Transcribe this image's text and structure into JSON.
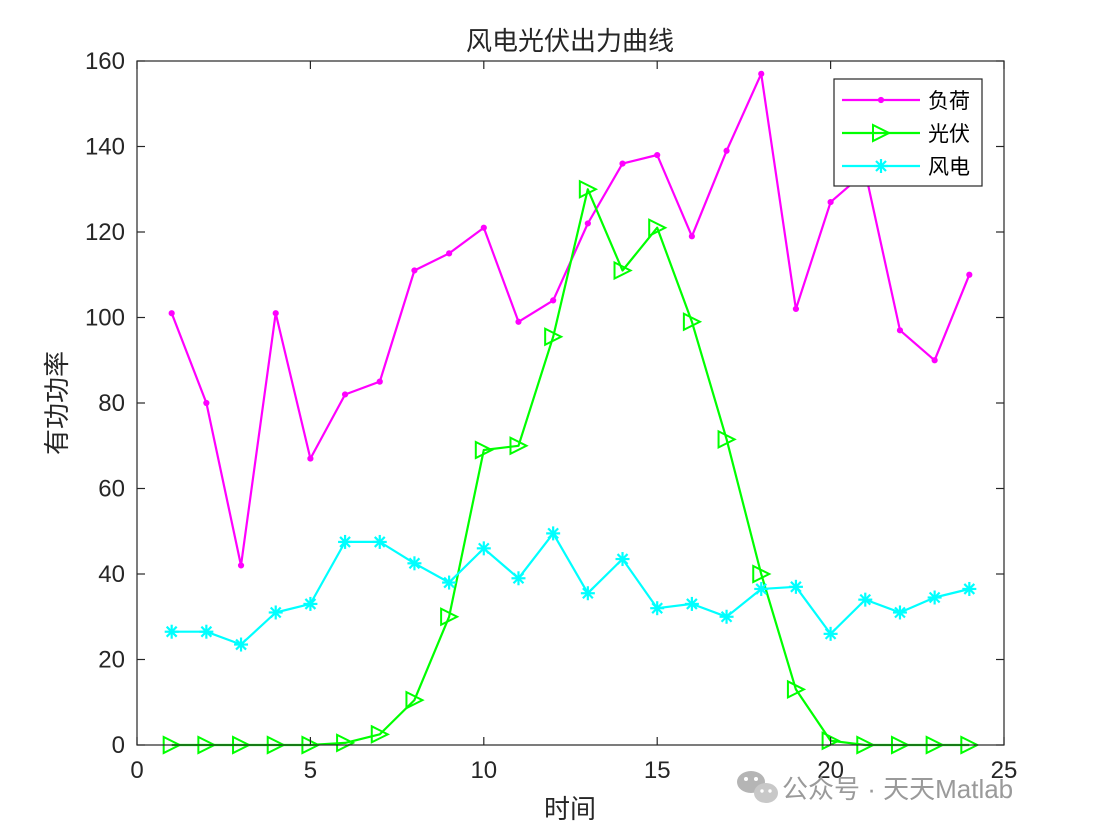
{
  "chart_data": {
    "type": "line",
    "title": "风电光伏出力曲线",
    "xlabel": "时间",
    "ylabel": "有功功率",
    "xlim": [
      0,
      25
    ],
    "ylim": [
      0,
      160
    ],
    "xticks": [
      0,
      5,
      10,
      15,
      20,
      25
    ],
    "yticks": [
      0,
      20,
      40,
      60,
      80,
      100,
      120,
      140,
      160
    ],
    "x": [
      1,
      2,
      3,
      4,
      5,
      6,
      7,
      8,
      9,
      10,
      11,
      12,
      13,
      14,
      15,
      16,
      17,
      18,
      19,
      20,
      21,
      22,
      23,
      24
    ],
    "legend_position": "top-right",
    "grid": false,
    "series": [
      {
        "name": "负荷",
        "color": "#ff00ff",
        "marker": "dot",
        "values": [
          101,
          80,
          42,
          101,
          67,
          82,
          85,
          111,
          115,
          121,
          99,
          104,
          122,
          136,
          138,
          119,
          139,
          157,
          102,
          127,
          134,
          97,
          90,
          110
        ]
      },
      {
        "name": "光伏",
        "color": "#00ff00",
        "marker": "triangle-right",
        "values": [
          0,
          0,
          0,
          0,
          0,
          0.5,
          2.5,
          10.5,
          30,
          69,
          70,
          95.5,
          130,
          111,
          121,
          99,
          71.5,
          40,
          13,
          1,
          0,
          0,
          0,
          0
        ]
      },
      {
        "name": "风电",
        "color": "#00ffff",
        "marker": "asterisk",
        "values": [
          26.5,
          26.5,
          23.5,
          31,
          33,
          47.5,
          47.5,
          42.5,
          38,
          46,
          39,
          49.5,
          35.5,
          43.5,
          32,
          33,
          30,
          36.5,
          37,
          26,
          34,
          31,
          34.5,
          36.5
        ]
      }
    ]
  },
  "watermark": {
    "text": "公众号 · 天天Matlab",
    "icon": "wechat-icon"
  }
}
